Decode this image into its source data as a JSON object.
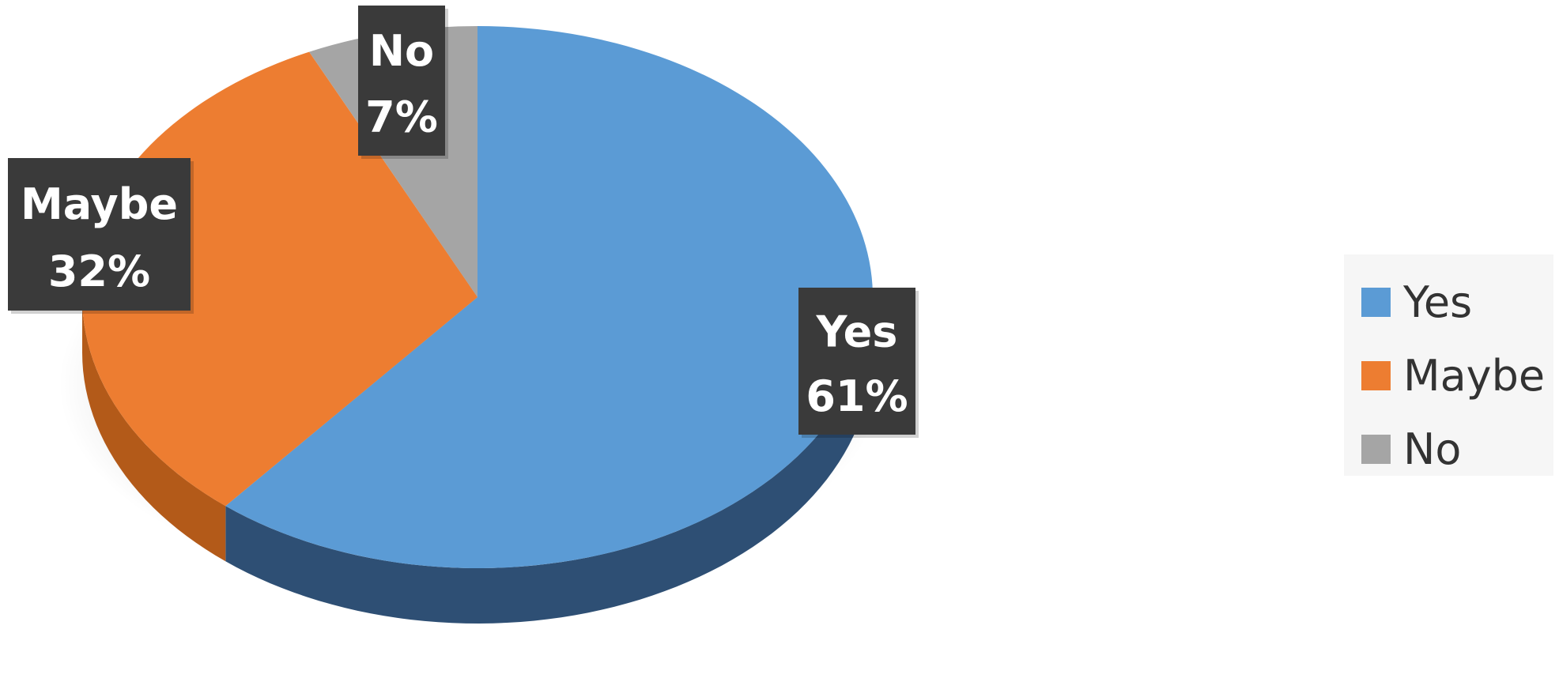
{
  "chart_data": {
    "type": "pie",
    "style": "3d",
    "categories": [
      "Yes",
      "Maybe",
      "No"
    ],
    "values": [
      61,
      32,
      7
    ],
    "unit": "%",
    "colors": [
      "#5b9bd5",
      "#ed7d31",
      "#a5a5a5"
    ],
    "side_colors": [
      "#2e4f74",
      "#b35a19",
      "#7a7a7a"
    ],
    "data_labels": [
      {
        "name": "Yes",
        "value": "61%"
      },
      {
        "name": "Maybe",
        "value": "32%"
      },
      {
        "name": "No",
        "value": "7%"
      }
    ],
    "legend": {
      "placement": "right",
      "items": [
        {
          "label": "Yes",
          "color": "#5b9bd5"
        },
        {
          "label": "Maybe",
          "color": "#ed7d31"
        },
        {
          "label": "No",
          "color": "#a5a5a5"
        }
      ]
    },
    "title": ""
  }
}
